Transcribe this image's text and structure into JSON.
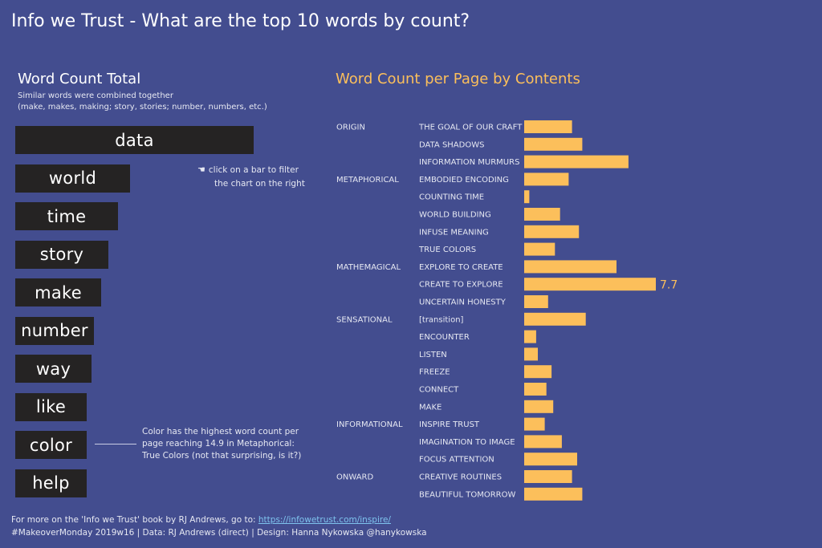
{
  "header": {
    "title": "Info we Trust - What are the top 10 words by count?"
  },
  "word_panel": {
    "title": "Word Count Total",
    "subtitle_line1": "Similar words were combined together",
    "subtitle_line2": "(make, makes, making; story, stories; number, numbers, etc.)",
    "hint_icon": "☚",
    "hint_line1": "click on a bar to filter",
    "hint_line2": "the chart on the right",
    "annotation": "Color has the highest word count per page reaching 14.9 in Metaphorical: True Colors (not that surprising, is it?)"
  },
  "footer": {
    "line1_prefix": "For more on the 'Info we Trust' book by RJ Andrews, go to: ",
    "line1_link": "https://infowetrust.com/inspire/",
    "line2": "#MakeoverMonday 2019w16 | Data: RJ Andrews (direct) | Design: Hanna Nykowska @hanykowska"
  },
  "colors": {
    "background": "#434d8f",
    "word_bar": "#252323",
    "page_bar": "#fcbf5b",
    "text": "#ffffff",
    "muted_text": "#e6e8f2"
  },
  "chart_data": [
    {
      "type": "bar",
      "orientation": "horizontal",
      "title": "Word Count Total",
      "categories": [
        "data",
        "world",
        "time",
        "story",
        "make",
        "number",
        "way",
        "like",
        "color",
        "help"
      ],
      "values": [
        100,
        48,
        43,
        39,
        36,
        33,
        32,
        30,
        30,
        30
      ],
      "value_labels_shown": false,
      "axes_shown": false
    },
    {
      "type": "bar",
      "orientation": "horizontal",
      "title": "Word Count per Page by Contents",
      "xlim": [
        0,
        8
      ],
      "grid": false,
      "rows": [
        {
          "section": "ORIGIN",
          "chapter": "THE GOAL OF OUR CRAFT",
          "value": 2.8
        },
        {
          "section": "",
          "chapter": "DATA SHADOWS",
          "value": 3.4
        },
        {
          "section": "",
          "chapter": "INFORMATION MURMURS",
          "value": 6.1
        },
        {
          "section": "METAPHORICAL",
          "chapter": "EMBODIED ENCODING",
          "value": 2.6
        },
        {
          "section": "",
          "chapter": "COUNTING TIME",
          "value": 0.3
        },
        {
          "section": "",
          "chapter": "WORLD BUILDING",
          "value": 2.1
        },
        {
          "section": "",
          "chapter": "INFUSE MEANING",
          "value": 3.2
        },
        {
          "section": "",
          "chapter": "TRUE COLORS",
          "value": 1.8
        },
        {
          "section": "MATHEMAGICAL",
          "chapter": "EXPLORE TO CREATE",
          "value": 5.4
        },
        {
          "section": "",
          "chapter": "CREATE TO EXPLORE",
          "value": 7.7,
          "label": "7.7"
        },
        {
          "section": "",
          "chapter": "UNCERTAIN HONESTY",
          "value": 1.4
        },
        {
          "section": "SENSATIONAL",
          "chapter": "[transition]",
          "value": 3.6
        },
        {
          "section": "",
          "chapter": "ENCOUNTER",
          "value": 0.7
        },
        {
          "section": "",
          "chapter": "LISTEN",
          "value": 0.8
        },
        {
          "section": "",
          "chapter": "FREEZE",
          "value": 1.6
        },
        {
          "section": "",
          "chapter": "CONNECT",
          "value": 1.3
        },
        {
          "section": "",
          "chapter": "MAKE",
          "value": 1.7
        },
        {
          "section": "INFORMATIONAL",
          "chapter": "INSPIRE TRUST",
          "value": 1.2
        },
        {
          "section": "",
          "chapter": "IMAGINATION TO IMAGE",
          "value": 2.2
        },
        {
          "section": "",
          "chapter": "FOCUS ATTENTION",
          "value": 3.1
        },
        {
          "section": "ONWARD",
          "chapter": "CREATIVE ROUTINES",
          "value": 2.8
        },
        {
          "section": "",
          "chapter": "BEAUTIFUL TOMORROW",
          "value": 3.4
        }
      ]
    }
  ]
}
